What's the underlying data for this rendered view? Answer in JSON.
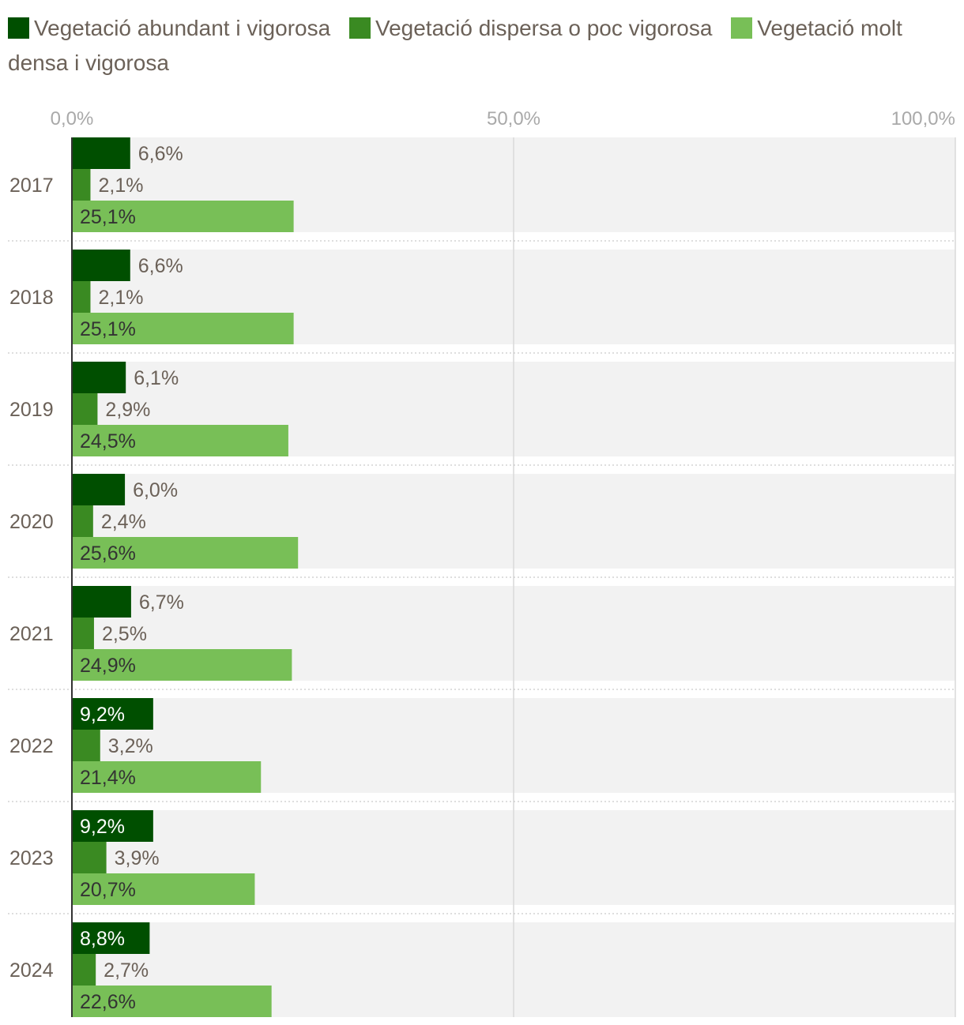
{
  "chart_data": {
    "type": "bar",
    "orientation": "horizontal",
    "categories": [
      "2017",
      "2018",
      "2019",
      "2020",
      "2021",
      "2022",
      "2023",
      "2024"
    ],
    "series": [
      {
        "name": "Vegetació abundant i vigorosa",
        "color": "#004f00",
        "values": [
          6.6,
          6.6,
          6.1,
          6.0,
          6.7,
          9.2,
          9.2,
          8.8
        ],
        "labels": [
          "6,6%",
          "6,6%",
          "6,1%",
          "6,0%",
          "6,7%",
          "9,2%",
          "9,2%",
          "8,8%"
        ]
      },
      {
        "name": "Vegetació dispersa o poc vigorosa",
        "color": "#3a8a22",
        "values": [
          2.1,
          2.1,
          2.9,
          2.4,
          2.5,
          3.2,
          3.9,
          2.7
        ],
        "labels": [
          "2,1%",
          "2,1%",
          "2,9%",
          "2,4%",
          "2,5%",
          "3,2%",
          "3,9%",
          "2,7%"
        ]
      },
      {
        "name": "Vegetació molt densa i vigorosa",
        "color": "#78bf57",
        "values": [
          25.1,
          25.1,
          24.5,
          25.6,
          24.9,
          21.4,
          20.7,
          22.6
        ],
        "labels": [
          "25,1%",
          "25,1%",
          "24,5%",
          "25,6%",
          "24,9%",
          "21,4%",
          "20,7%",
          "22,6%"
        ]
      }
    ],
    "xlim": [
      0,
      100
    ],
    "x_ticks": [
      0,
      50,
      100
    ],
    "x_tick_labels": [
      "0,0%",
      "50,0%",
      "100,0%"
    ],
    "legend_position": "top",
    "grid": true,
    "title": "",
    "xlabel": "",
    "ylabel": ""
  }
}
